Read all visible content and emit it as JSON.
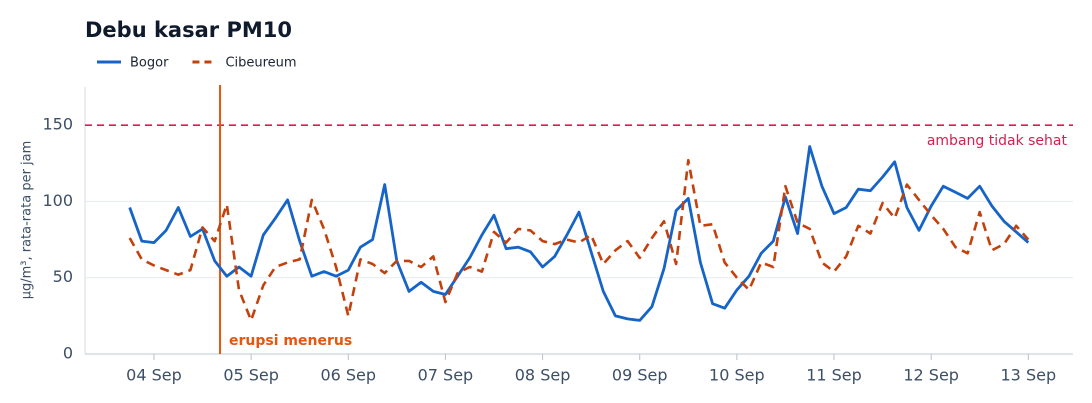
{
  "chart_data": {
    "type": "line",
    "title": "Debu kasar PM10",
    "ylabel": "µg/m³, rata-rata per jam",
    "x": [
      3.75,
      3.875,
      4,
      4.125,
      4.25,
      4.375,
      4.5,
      4.625,
      4.75,
      4.875,
      5,
      5.125,
      5.25,
      5.375,
      5.5,
      5.625,
      5.75,
      5.875,
      6,
      6.125,
      6.25,
      6.375,
      6.5,
      6.625,
      6.75,
      6.875,
      7,
      7.125,
      7.25,
      7.375,
      7.5,
      7.625,
      7.75,
      7.875,
      8,
      8.125,
      8.25,
      8.375,
      8.5,
      8.625,
      8.75,
      8.875,
      9,
      9.125,
      9.25,
      9.375,
      9.5,
      9.625,
      9.75,
      9.875,
      10,
      10.125,
      10.25,
      10.375,
      10.5,
      10.625,
      10.75,
      10.875,
      11,
      11.125,
      11.25,
      11.375,
      11.5,
      11.625,
      11.75,
      11.875,
      12,
      12.125,
      12.25,
      12.375,
      12.5,
      12.625,
      12.75,
      12.875,
      13
    ],
    "series": [
      {
        "name": "Bogor",
        "color": "#1664c8",
        "dash": "solid",
        "values": [
          96,
          74,
          73,
          81,
          96,
          77,
          82,
          61,
          51,
          57,
          51,
          78,
          89,
          101,
          74,
          51,
          54,
          51,
          55,
          70,
          75,
          111,
          61,
          41,
          47,
          41,
          39,
          51,
          63,
          78,
          91,
          69,
          70,
          67,
          57,
          64,
          78,
          93,
          67,
          41,
          25,
          23,
          22,
          31,
          56,
          94,
          102,
          60,
          33,
          30,
          42,
          51,
          66,
          74,
          103,
          79,
          136,
          110,
          92,
          96,
          108,
          107,
          116,
          126,
          96,
          81,
          97,
          110,
          106,
          102,
          110,
          97,
          87,
          80,
          73
        ]
      },
      {
        "name": "Cibeureum",
        "color": "#c2410c",
        "dash": "dashed",
        "values": [
          76,
          62,
          58,
          55,
          52,
          55,
          83,
          74,
          98,
          42,
          22,
          45,
          57,
          60,
          62,
          101,
          82,
          57,
          25,
          62,
          59,
          53,
          61,
          61,
          57,
          64,
          34,
          53,
          57,
          54,
          80,
          73,
          82,
          81,
          74,
          72,
          75,
          73,
          78,
          59,
          68,
          74,
          63,
          76,
          87,
          59,
          127,
          84,
          85,
          60,
          50,
          42,
          60,
          57,
          110,
          86,
          82,
          60,
          54,
          64,
          84,
          79,
          99,
          89,
          111,
          101,
          91,
          82,
          70,
          66,
          93,
          68,
          72,
          84,
          75
        ]
      }
    ],
    "xlim": [
      3.29,
      13.46
    ],
    "xticks": [
      {
        "value": 4,
        "label": "04 Sep"
      },
      {
        "value": 5,
        "label": "05 Sep"
      },
      {
        "value": 6,
        "label": "06 Sep"
      },
      {
        "value": 7,
        "label": "07 Sep"
      },
      {
        "value": 8,
        "label": "08 Sep"
      },
      {
        "value": 9,
        "label": "09 Sep"
      },
      {
        "value": 10,
        "label": "10 Sep"
      },
      {
        "value": 11,
        "label": "11 Sep"
      },
      {
        "value": 12,
        "label": "12 Sep"
      },
      {
        "value": 13,
        "label": "13 Sep"
      }
    ],
    "ylim": [
      0,
      175
    ],
    "yticks": [
      0,
      50,
      100,
      150
    ],
    "grid": true,
    "legend": "top-left",
    "threshold": {
      "value": 150,
      "label": "ambang tidak sehat",
      "color": "#d61f4f"
    },
    "event": {
      "x": 4.68,
      "label": "erupsi menerus",
      "color": "#e4570f"
    }
  }
}
